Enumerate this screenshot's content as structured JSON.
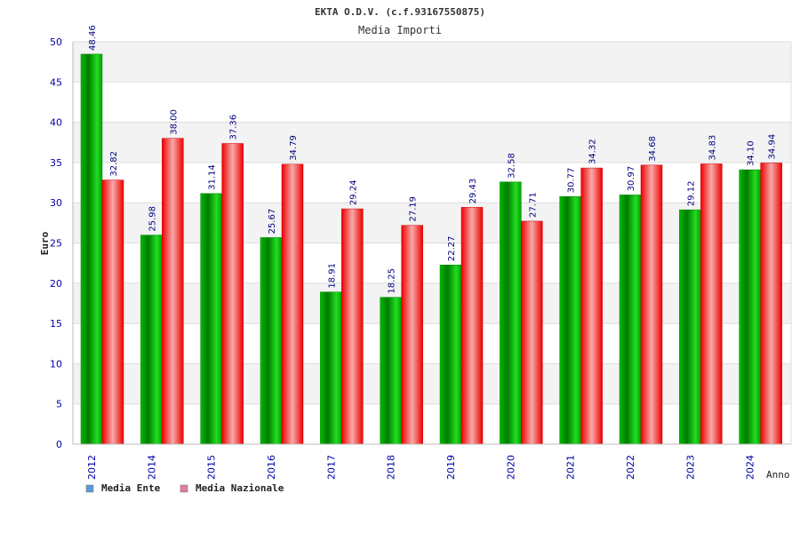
{
  "chart_data": {
    "type": "bar",
    "title": "EKTA O.D.V. (c.f.93167550875)",
    "subtitle": "Media Importi",
    "ylabel": "Euro",
    "xlabel": "Anno",
    "ylim": [
      0,
      50
    ],
    "yticks": [
      "0",
      "5",
      "10",
      "15",
      "20",
      "25",
      "30",
      "35",
      "40",
      "45",
      "50"
    ],
    "grid": true,
    "legend_position": "bottom-left",
    "categories": [
      "2012",
      "2014",
      "2015",
      "2016",
      "2017",
      "2018",
      "2019",
      "2020",
      "2021",
      "2022",
      "2023",
      "2024"
    ],
    "series": [
      {
        "name": "Media Ente",
        "legend_color": "#5b9bd5",
        "color": "#00aa00",
        "values": [
          48.46,
          25.98,
          31.14,
          25.67,
          18.91,
          18.25,
          22.27,
          32.58,
          30.77,
          30.97,
          29.12,
          34.1
        ],
        "labels": [
          "48.46",
          "25.98",
          "31.14",
          "25.67",
          "18.91",
          "18.25",
          "22.27",
          "32.58",
          "30.77",
          "30.97",
          "29.12",
          "34.10"
        ]
      },
      {
        "name": "Media Nazionale",
        "legend_color": "#e07fa0",
        "color": "#ee1111",
        "values": [
          32.82,
          38.0,
          37.36,
          34.79,
          29.24,
          27.19,
          29.43,
          27.71,
          34.32,
          34.68,
          34.83,
          34.94
        ],
        "labels": [
          "32.82",
          "38.00",
          "37.36",
          "34.79",
          "29.24",
          "27.19",
          "29.43",
          "27.71",
          "34.32",
          "34.68",
          "34.83",
          "34.94"
        ]
      }
    ]
  }
}
